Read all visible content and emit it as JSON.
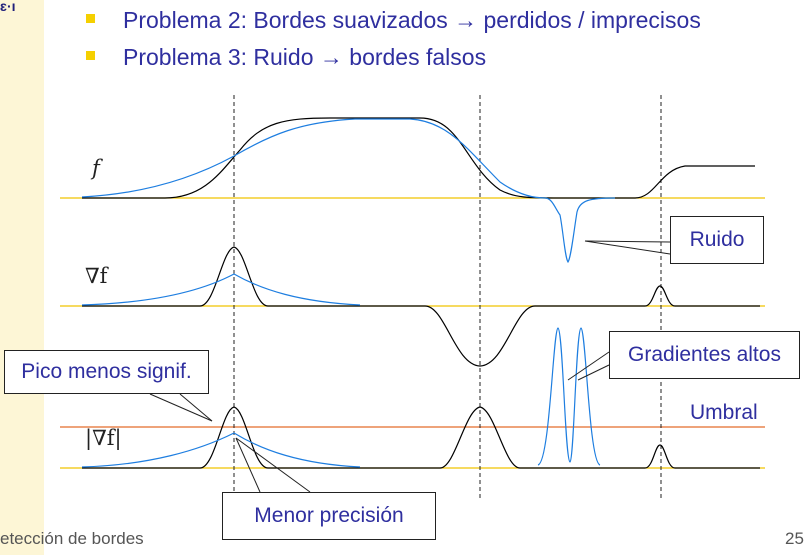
{
  "slide": {
    "side_mark": "ɛ·ı",
    "bullets": [
      "Problema 2: Bordes suavizados → perdidos / imprecisos",
      "Problema 3: Ruido → bordes falsos"
    ],
    "footer_left": "etección de bordes",
    "page_number": "25"
  },
  "labels": {
    "f": "f",
    "grad_f": "∇f",
    "abs_grad_f": "|∇f|",
    "ruido": "Ruido",
    "gradientes_altos": "Gradientes altos",
    "pico": "Pico menos signif.",
    "menor": "Menor precisión",
    "umbral": "Umbral"
  },
  "colors": {
    "ideal_curve": "#000000",
    "real_curve": "#1e7ee0",
    "baseline": "#f0c400",
    "threshold": "#e36c2a",
    "text": "#2f2f9f"
  }
}
